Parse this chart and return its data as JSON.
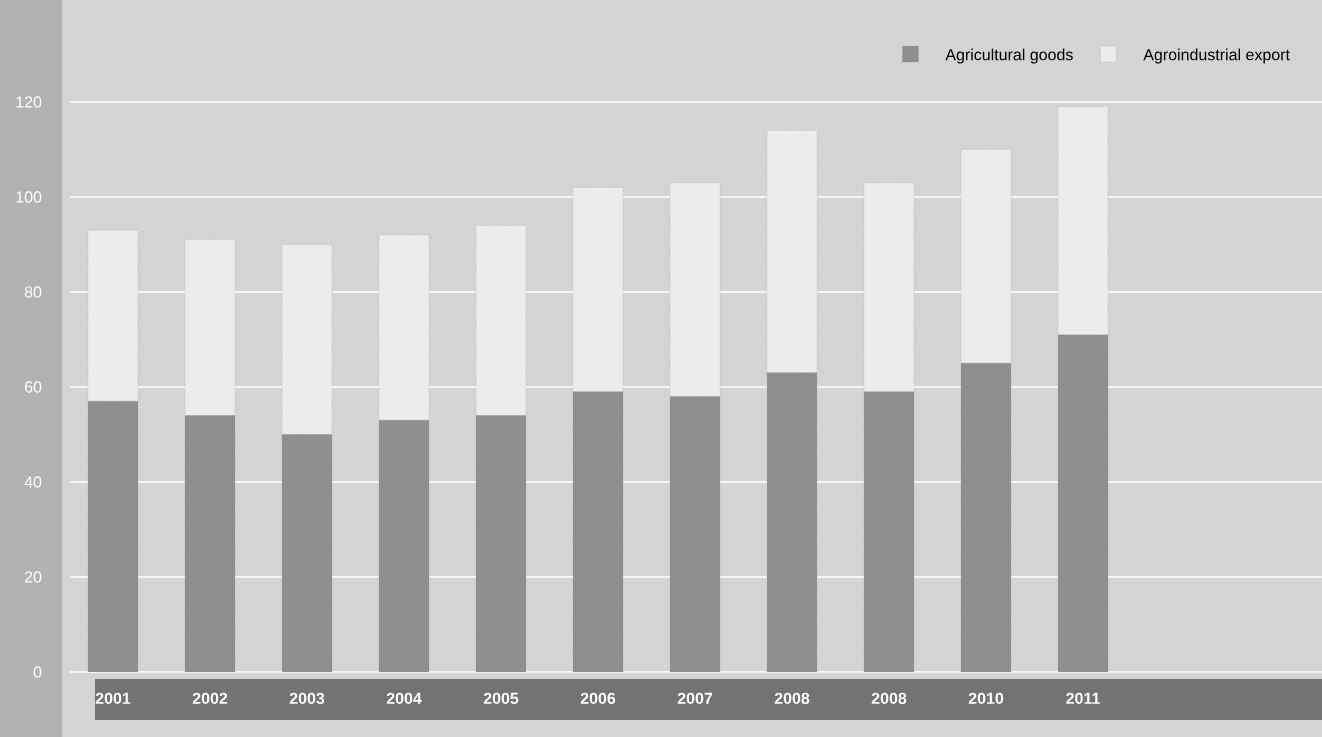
{
  "chart_data": {
    "type": "bar",
    "stacked": true,
    "categories": [
      "2001",
      "2002",
      "2003",
      "2004",
      "2005",
      "2006",
      "2007",
      "2008",
      "2008",
      "2010",
      "2011"
    ],
    "series": [
      {
        "name": "Agricultural goods",
        "color": "#8f8f8f",
        "values": [
          57,
          54,
          50,
          53,
          54,
          59,
          58,
          63,
          59,
          65,
          71
        ]
      },
      {
        "name": "Agroindustrial export",
        "color": "#ececec",
        "values": [
          36,
          37,
          40,
          39,
          40,
          43,
          45,
          51,
          44,
          45,
          48
        ]
      }
    ],
    "ylim": [
      0,
      120
    ],
    "yticks": [
      0,
      20,
      40,
      60,
      80,
      100,
      120
    ],
    "grid": "y",
    "legend": "top right"
  }
}
